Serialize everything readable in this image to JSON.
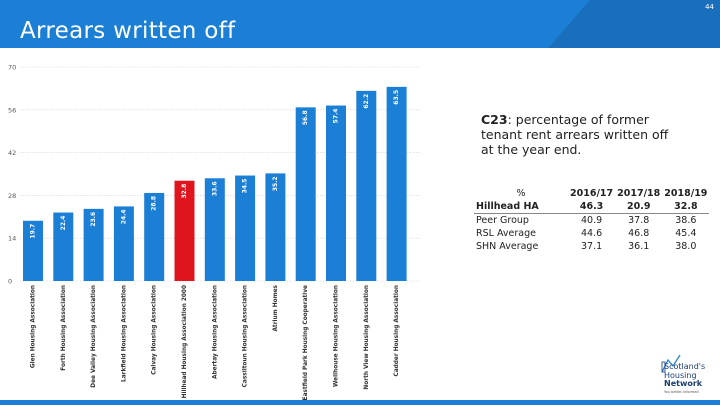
{
  "slide": {
    "title": "Arrears written off",
    "page_number": "44"
  },
  "description": {
    "code": "C23",
    "text": ":  percentage of former tenant rent arrears written off at the year end."
  },
  "table": {
    "header": [
      "%",
      "2016/17",
      "2017/18",
      "2018/19"
    ],
    "rows": [
      {
        "label": "Hillhead HA",
        "values": [
          "46.3",
          "20.9",
          "32.8"
        ],
        "bold": true
      },
      {
        "label": "Peer Group",
        "values": [
          "40.9",
          "37.8",
          "38.6"
        ],
        "bold": false
      },
      {
        "label": "RSL Average",
        "values": [
          "44.6",
          "46.8",
          "45.4"
        ],
        "bold": false
      },
      {
        "label": "SHN Average",
        "values": [
          "37.1",
          "36.1",
          "38.0"
        ],
        "bold": false
      }
    ]
  },
  "logo": {
    "lines": [
      "Scotland's",
      "Housing",
      "Network"
    ],
    "tagline": "You better-informed"
  },
  "colors": {
    "bar": "#1c7fd6",
    "highlight": "#e0141d",
    "banner": "#1c7fd6"
  },
  "chart_data": {
    "type": "bar",
    "categories": [
      "Glen Housing Association",
      "Forth Housing Association",
      "Dee Valley Housing Association",
      "Larkfield Housing Association",
      "Calvay Housing Association",
      "Hillhead Housing Association 2000",
      "Abertay Housing Association",
      "Cassiltoun Housing Association",
      "Atrium Homes",
      "Eastfield Park Housing Cooperative",
      "Wellhouse Housing Association",
      "North View Housing Association",
      "Cadder Housing Association"
    ],
    "value_labels": [
      "19.7",
      "22.4",
      "23.6",
      "24.4",
      "28.8",
      "32.8",
      "33.6",
      "34.5",
      "35.2",
      "56.8",
      "57.4",
      "62.2",
      "63.5"
    ],
    "values": [
      19.7,
      22.4,
      23.6,
      24.4,
      28.8,
      32.8,
      33.6,
      34.5,
      35.2,
      56.8,
      57.4,
      62.2,
      63.5
    ],
    "highlight_index": 5,
    "yticks": [
      "0",
      "14",
      "28",
      "42",
      "56",
      "70"
    ],
    "ylim": [
      0,
      70
    ],
    "grid": true
  }
}
